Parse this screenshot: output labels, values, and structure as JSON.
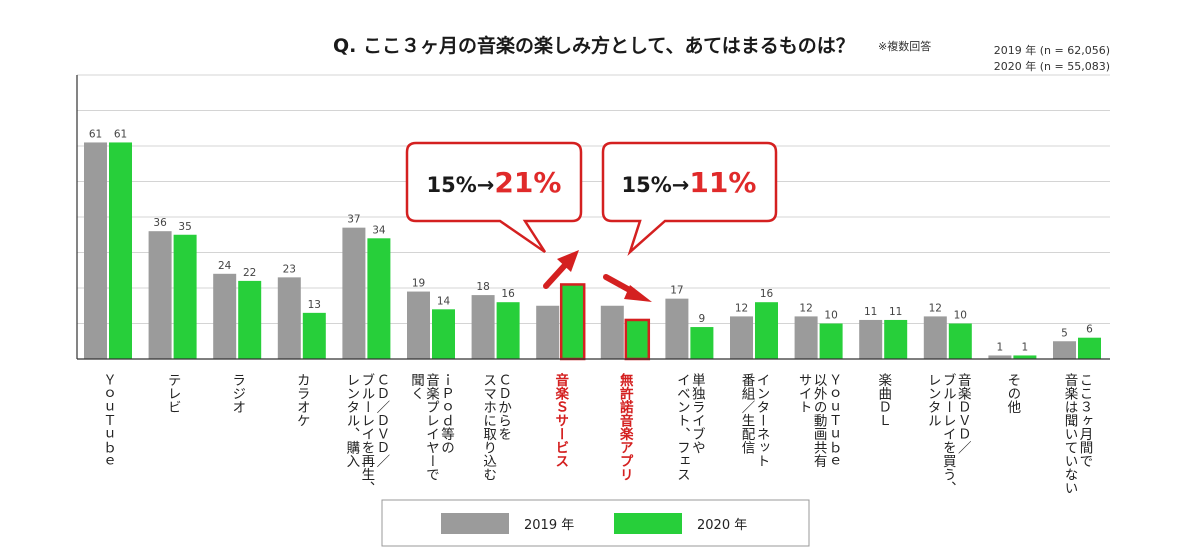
{
  "title": "Q. ここ３ヶ月の音楽の楽しみ方として、あてはまるものは？",
  "title_note": "※複数回答",
  "sample_sizes": [
    "2019 年 (n = 62,056)",
    "2020 年 (n = 55,083)"
  ],
  "colors": {
    "2019": "#9b9b9b",
    "2020": "#27cf3a",
    "highlight": "#d42020"
  },
  "callouts": [
    {
      "base": "15%→",
      "highlight": "21%"
    },
    {
      "base": "15%→",
      "highlight": "11%"
    }
  ],
  "chart_data": {
    "type": "bar",
    "title": "Q. ここ３ヶ月の音楽の楽しみ方として、あてはまるものは？",
    "categories": [
      "YouTube",
      "テレビ",
      "ラジオ",
      "カラオケ",
      "CD／DVD／ブルーレイを再生、レンタル、購入",
      "iPod等の音楽プレイヤーで聞く",
      "CDからをスマホに取り込む",
      "音楽Sサービス",
      "無許諾音楽アプリ",
      "単独ライブやイベント、フェス",
      "インターネット番組／生配信",
      "YouTube以外の動画共有サイト",
      "楽曲DL",
      "音楽DVD／ブルーレイを買う、レンタル",
      "その他",
      "ここ3ヶ月間で音楽は聞いていない"
    ],
    "category_lines": [
      [
        "ＹｏｕＴｕｂｅ"
      ],
      [
        "テレビ"
      ],
      [
        "ラジオ"
      ],
      [
        "カラオケ"
      ],
      [
        "ＣＤ／ＤＶＤ／",
        "ブルーレイを再生、",
        "レンタル、購入"
      ],
      [
        "ｉＰｏｄ等の",
        "音楽プレイヤーで",
        "聞く"
      ],
      [
        "ＣＤからを",
        "スマホに取り込む"
      ],
      [
        "音楽Ｓサービス"
      ],
      [
        "無許諾音楽アプリ"
      ],
      [
        "単独ライブや",
        "イベント、フェス"
      ],
      [
        "インターネット",
        "番組／生配信"
      ],
      [
        "ＹｏｕＴｕｂｅ",
        "以外の動画共有",
        "サイト"
      ],
      [
        "楽曲ＤＬ"
      ],
      [
        "音楽ＤＶＤ／",
        "ブルーレイを買う、",
        "レンタル"
      ],
      [
        "その他"
      ],
      [
        "ここ３ヶ月間で",
        "音楽は聞いていない"
      ]
    ],
    "highlighted_categories": [
      7,
      8
    ],
    "series": [
      {
        "name": "2019 年",
        "values": [
          61,
          36,
          24,
          23,
          37,
          19,
          18,
          15,
          15,
          17,
          12,
          12,
          11,
          12,
          1,
          5
        ],
        "labels": [
          "61",
          "36",
          "24",
          "23",
          "37",
          "19",
          "18",
          "",
          "",
          "17",
          "12",
          "12",
          "11",
          "12",
          "1",
          "5"
        ]
      },
      {
        "name": "2020 年",
        "values": [
          61,
          35,
          22,
          13,
          34,
          14,
          16,
          21,
          11,
          9,
          16,
          10,
          11,
          10,
          1,
          6
        ],
        "labels": [
          "61",
          "35",
          "22",
          "13",
          "34",
          "14",
          "16",
          "",
          "",
          "9",
          "16",
          "10",
          "11",
          "10",
          "1",
          "6"
        ]
      }
    ],
    "ylim": [
      0,
      80
    ],
    "grid": true,
    "legend": "bottom-center"
  }
}
